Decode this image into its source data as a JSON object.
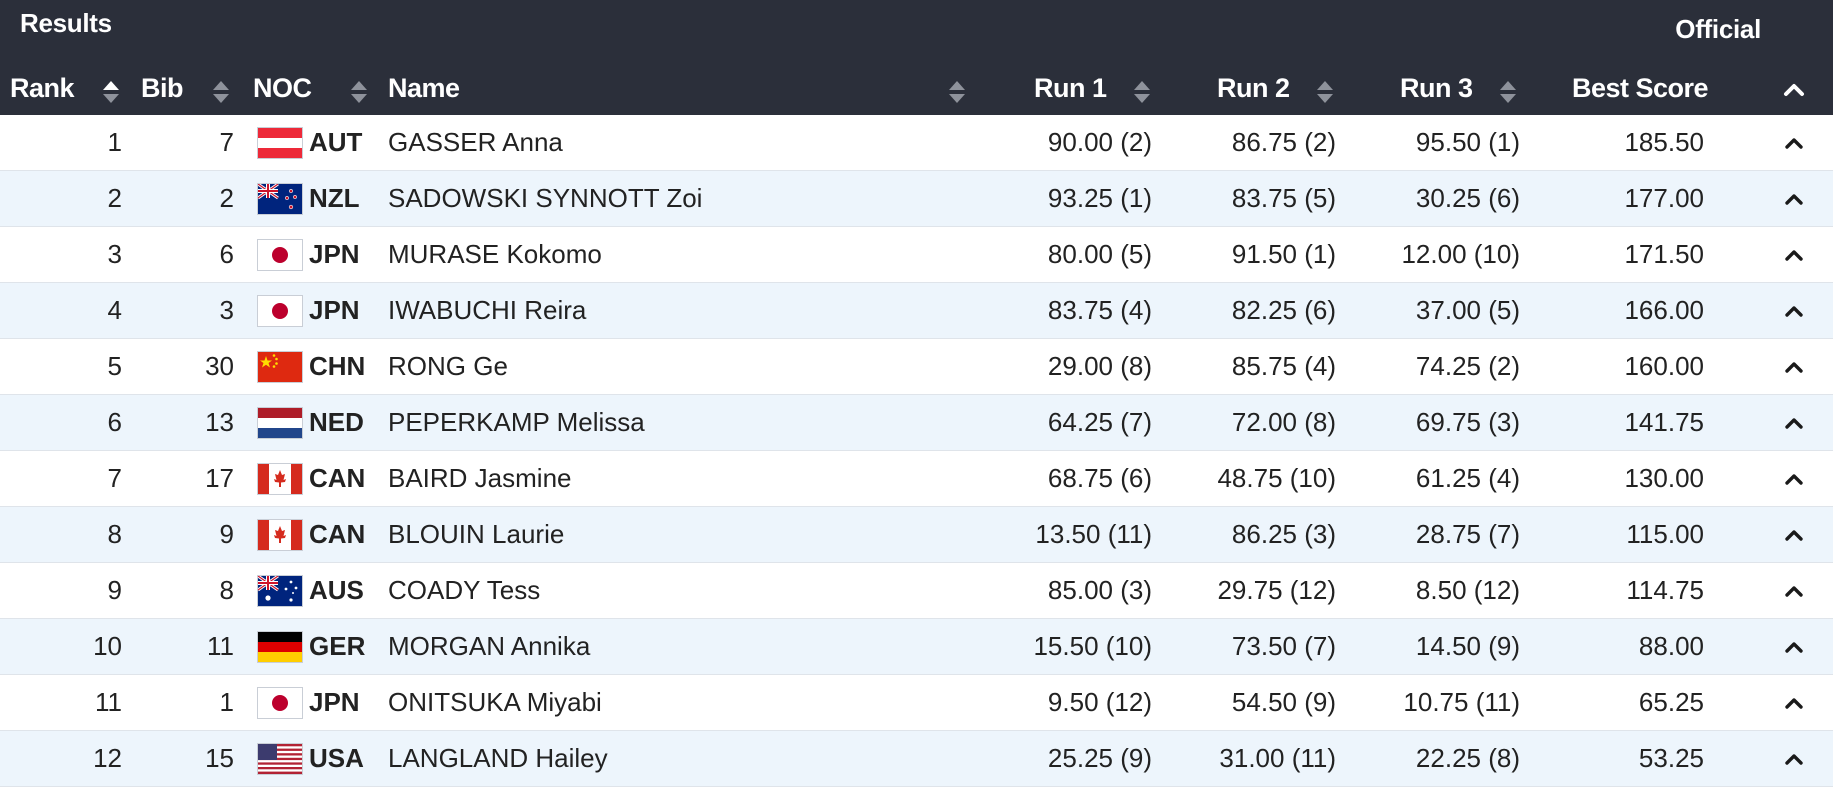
{
  "header": {
    "title": "Results",
    "status": "Official",
    "columns": {
      "rank": "Rank",
      "bib": "Bib",
      "noc": "NOC",
      "name": "Name",
      "run1": "Run 1",
      "run2": "Run 2",
      "run3": "Run 3",
      "best": "Best Score"
    }
  },
  "icons": {
    "sort": "sort-icon",
    "expand": "chevron-up-icon"
  },
  "rows": [
    {
      "rank": "1",
      "bib": "7",
      "flag": "AUT",
      "noc": "AUT",
      "name": "GASSER Anna",
      "run1": "90.00 (2)",
      "run2": "86.75 (2)",
      "run3": "95.50 (1)",
      "best": "185.50"
    },
    {
      "rank": "2",
      "bib": "2",
      "flag": "NZL",
      "noc": "NZL",
      "name": "SADOWSKI SYNNOTT Zoi",
      "run1": "93.25 (1)",
      "run2": "83.75 (5)",
      "run3": "30.25 (6)",
      "best": "177.00"
    },
    {
      "rank": "3",
      "bib": "6",
      "flag": "JPN",
      "noc": "JPN",
      "name": "MURASE Kokomo",
      "run1": "80.00 (5)",
      "run2": "91.50 (1)",
      "run3": "12.00 (10)",
      "best": "171.50"
    },
    {
      "rank": "4",
      "bib": "3",
      "flag": "JPN",
      "noc": "JPN",
      "name": "IWABUCHI Reira",
      "run1": "83.75 (4)",
      "run2": "82.25 (6)",
      "run3": "37.00 (5)",
      "best": "166.00"
    },
    {
      "rank": "5",
      "bib": "30",
      "flag": "CHN",
      "noc": "CHN",
      "name": "RONG Ge",
      "run1": "29.00 (8)",
      "run2": "85.75 (4)",
      "run3": "74.25 (2)",
      "best": "160.00"
    },
    {
      "rank": "6",
      "bib": "13",
      "flag": "NED",
      "noc": "NED",
      "name": "PEPERKAMP Melissa",
      "run1": "64.25 (7)",
      "run2": "72.00 (8)",
      "run3": "69.75 (3)",
      "best": "141.75"
    },
    {
      "rank": "7",
      "bib": "17",
      "flag": "CAN",
      "noc": "CAN",
      "name": "BAIRD Jasmine",
      "run1": "68.75 (6)",
      "run2": "48.75 (10)",
      "run3": "61.25 (4)",
      "best": "130.00"
    },
    {
      "rank": "8",
      "bib": "9",
      "flag": "CAN",
      "noc": "CAN",
      "name": "BLOUIN Laurie",
      "run1": "13.50 (11)",
      "run2": "86.25 (3)",
      "run3": "28.75 (7)",
      "best": "115.00"
    },
    {
      "rank": "9",
      "bib": "8",
      "flag": "AUS",
      "noc": "AUS",
      "name": "COADY Tess",
      "run1": "85.00 (3)",
      "run2": "29.75 (12)",
      "run3": "8.50 (12)",
      "best": "114.75"
    },
    {
      "rank": "10",
      "bib": "11",
      "flag": "GER",
      "noc": "GER",
      "name": "MORGAN Annika",
      "run1": "15.50 (10)",
      "run2": "73.50 (7)",
      "run3": "14.50 (9)",
      "best": "88.00"
    },
    {
      "rank": "11",
      "bib": "1",
      "flag": "JPN",
      "noc": "JPN",
      "name": "ONITSUKA Miyabi",
      "run1": "9.50 (12)",
      "run2": "54.50 (9)",
      "run3": "10.75 (11)",
      "best": "65.25"
    },
    {
      "rank": "12",
      "bib": "15",
      "flag": "USA",
      "noc": "USA",
      "name": "LANGLAND Hailey",
      "run1": "25.25 (9)",
      "run2": "31.00 (11)",
      "run3": "22.25 (8)",
      "best": "53.25"
    }
  ]
}
